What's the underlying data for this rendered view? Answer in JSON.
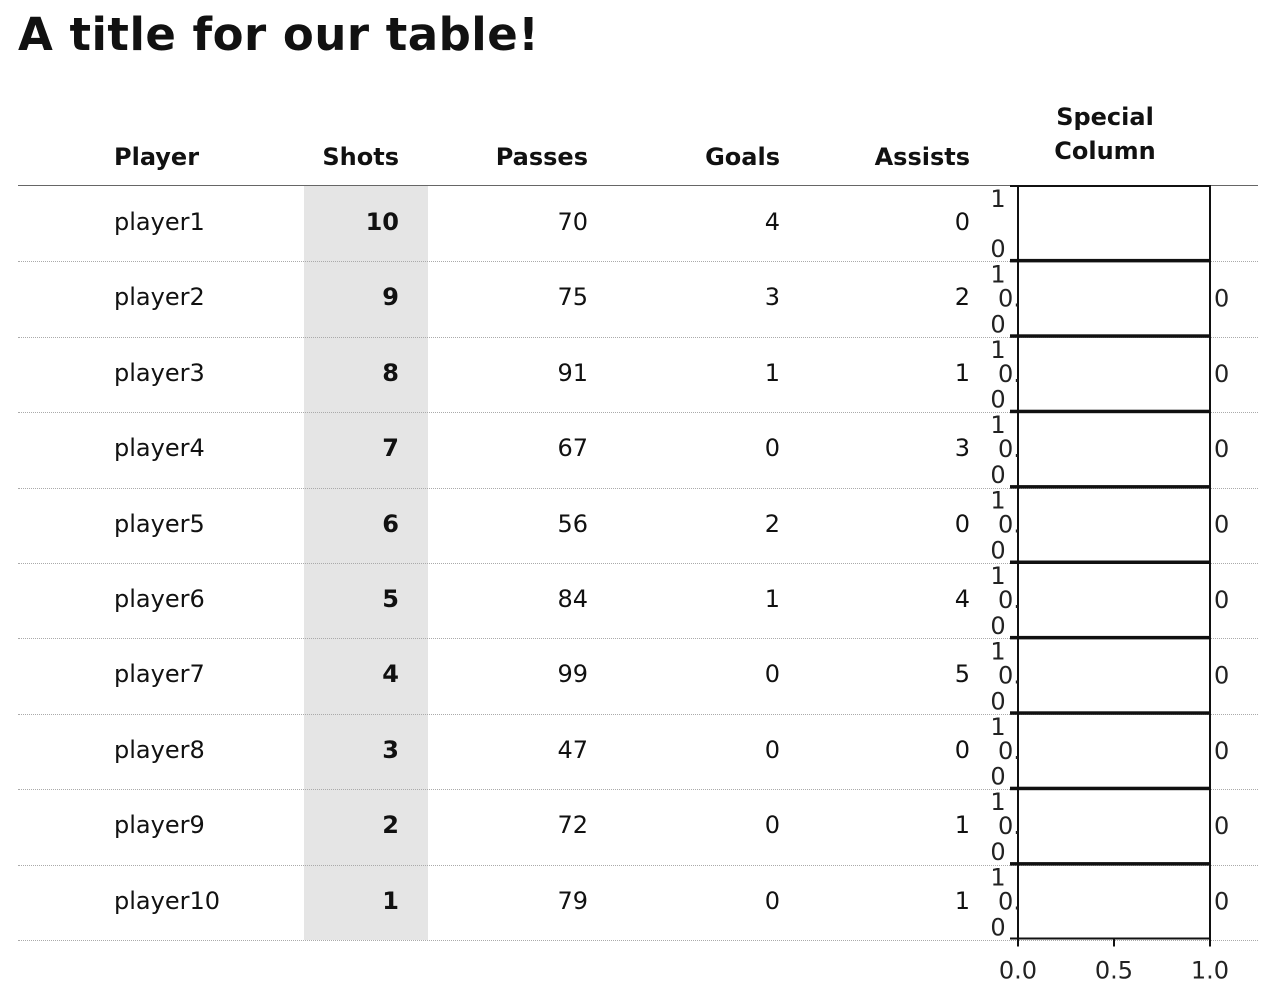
{
  "chart_data": {
    "type": "table",
    "title": "A title for our table!",
    "columns": [
      "Player",
      "Shots",
      "Passes",
      "Goals",
      "Assists",
      "Special\nColumn"
    ],
    "rows": [
      {
        "player": "player1",
        "shots": "10",
        "passes": "70",
        "goals": "4",
        "assists": "0"
      },
      {
        "player": "player2",
        "shots": "9",
        "passes": "75",
        "goals": "3",
        "assists": "2"
      },
      {
        "player": "player3",
        "shots": "8",
        "passes": "91",
        "goals": "1",
        "assists": "1"
      },
      {
        "player": "player4",
        "shots": "7",
        "passes": "67",
        "goals": "0",
        "assists": "3"
      },
      {
        "player": "player5",
        "shots": "6",
        "passes": "56",
        "goals": "2",
        "assists": "0"
      },
      {
        "player": "player6",
        "shots": "5",
        "passes": "84",
        "goals": "1",
        "assists": "4"
      },
      {
        "player": "player7",
        "shots": "4",
        "passes": "99",
        "goals": "0",
        "assists": "5"
      },
      {
        "player": "player8",
        "shots": "3",
        "passes": "47",
        "goals": "0",
        "assists": "0"
      },
      {
        "player": "player9",
        "shots": "2",
        "passes": "72",
        "goals": "0",
        "assists": "1"
      },
      {
        "player": "player10",
        "shots": "1",
        "passes": "79",
        "goals": "0",
        "assists": "1"
      }
    ],
    "highlighted_column": "Shots",
    "highlight_color": "#e5e5e5",
    "special_column_axes": {
      "xlim": [
        0,
        1
      ],
      "ylim": [
        0,
        1
      ],
      "xtick_labels": [
        "0.0",
        "0.5",
        "1.0"
      ],
      "ytick_labels": [
        "0",
        "1"
      ],
      "clipped_left_label": "0.",
      "clipped_right_label": "0"
    }
  }
}
